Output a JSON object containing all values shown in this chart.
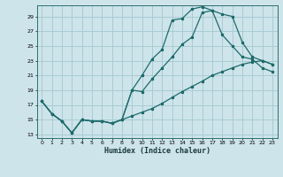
{
  "bg_color": "#cde4ea",
  "grid_color": "#a8ccd4",
  "line_color": "#1e6b6b",
  "xlabel": "Humidex (Indice chaleur)",
  "xlim": [
    -0.5,
    23.5
  ],
  "ylim": [
    12.5,
    30.5
  ],
  "yticks": [
    13,
    15,
    17,
    19,
    21,
    23,
    25,
    27,
    29
  ],
  "xticks": [
    0,
    1,
    2,
    3,
    4,
    5,
    6,
    7,
    8,
    9,
    10,
    11,
    12,
    13,
    14,
    15,
    16,
    17,
    18,
    19,
    20,
    21,
    22,
    23
  ],
  "curve_upper_x": [
    0,
    1,
    2,
    3,
    4,
    5,
    6,
    7,
    8,
    9,
    10,
    11,
    12,
    13,
    14,
    15,
    16,
    17,
    18,
    19,
    20,
    21,
    22,
    23
  ],
  "curve_upper_y": [
    17.5,
    15.8,
    14.8,
    13.2,
    15.0,
    14.8,
    14.8,
    14.5,
    15.0,
    19.0,
    21.0,
    23.2,
    24.5,
    28.5,
    28.7,
    30.0,
    30.3,
    29.8,
    26.5,
    25.0,
    23.5,
    23.2,
    22.0,
    21.5
  ],
  "curve_mid_x": [
    0,
    1,
    2,
    3,
    4,
    5,
    6,
    7,
    8,
    9,
    10,
    11,
    12,
    13,
    14,
    15,
    16,
    17,
    18,
    19,
    20,
    21,
    22,
    23
  ],
  "curve_mid_y": [
    17.5,
    15.8,
    14.8,
    13.2,
    15.0,
    14.8,
    14.8,
    14.5,
    15.0,
    19.0,
    18.8,
    20.5,
    22.0,
    23.5,
    25.2,
    26.2,
    29.5,
    29.8,
    29.3,
    29.0,
    25.5,
    23.5,
    23.0,
    22.5
  ],
  "curve_diag_x": [
    0,
    1,
    2,
    3,
    4,
    5,
    6,
    7,
    8,
    9,
    10,
    11,
    12,
    13,
    14,
    15,
    16,
    17,
    18,
    19,
    20,
    21,
    22,
    23
  ],
  "curve_diag_y": [
    17.5,
    15.8,
    14.8,
    13.2,
    15.0,
    14.8,
    14.8,
    14.5,
    15.0,
    15.5,
    16.0,
    16.5,
    17.2,
    18.0,
    18.8,
    19.5,
    20.2,
    21.0,
    21.5,
    22.0,
    22.5,
    22.8,
    23.0,
    22.5
  ]
}
